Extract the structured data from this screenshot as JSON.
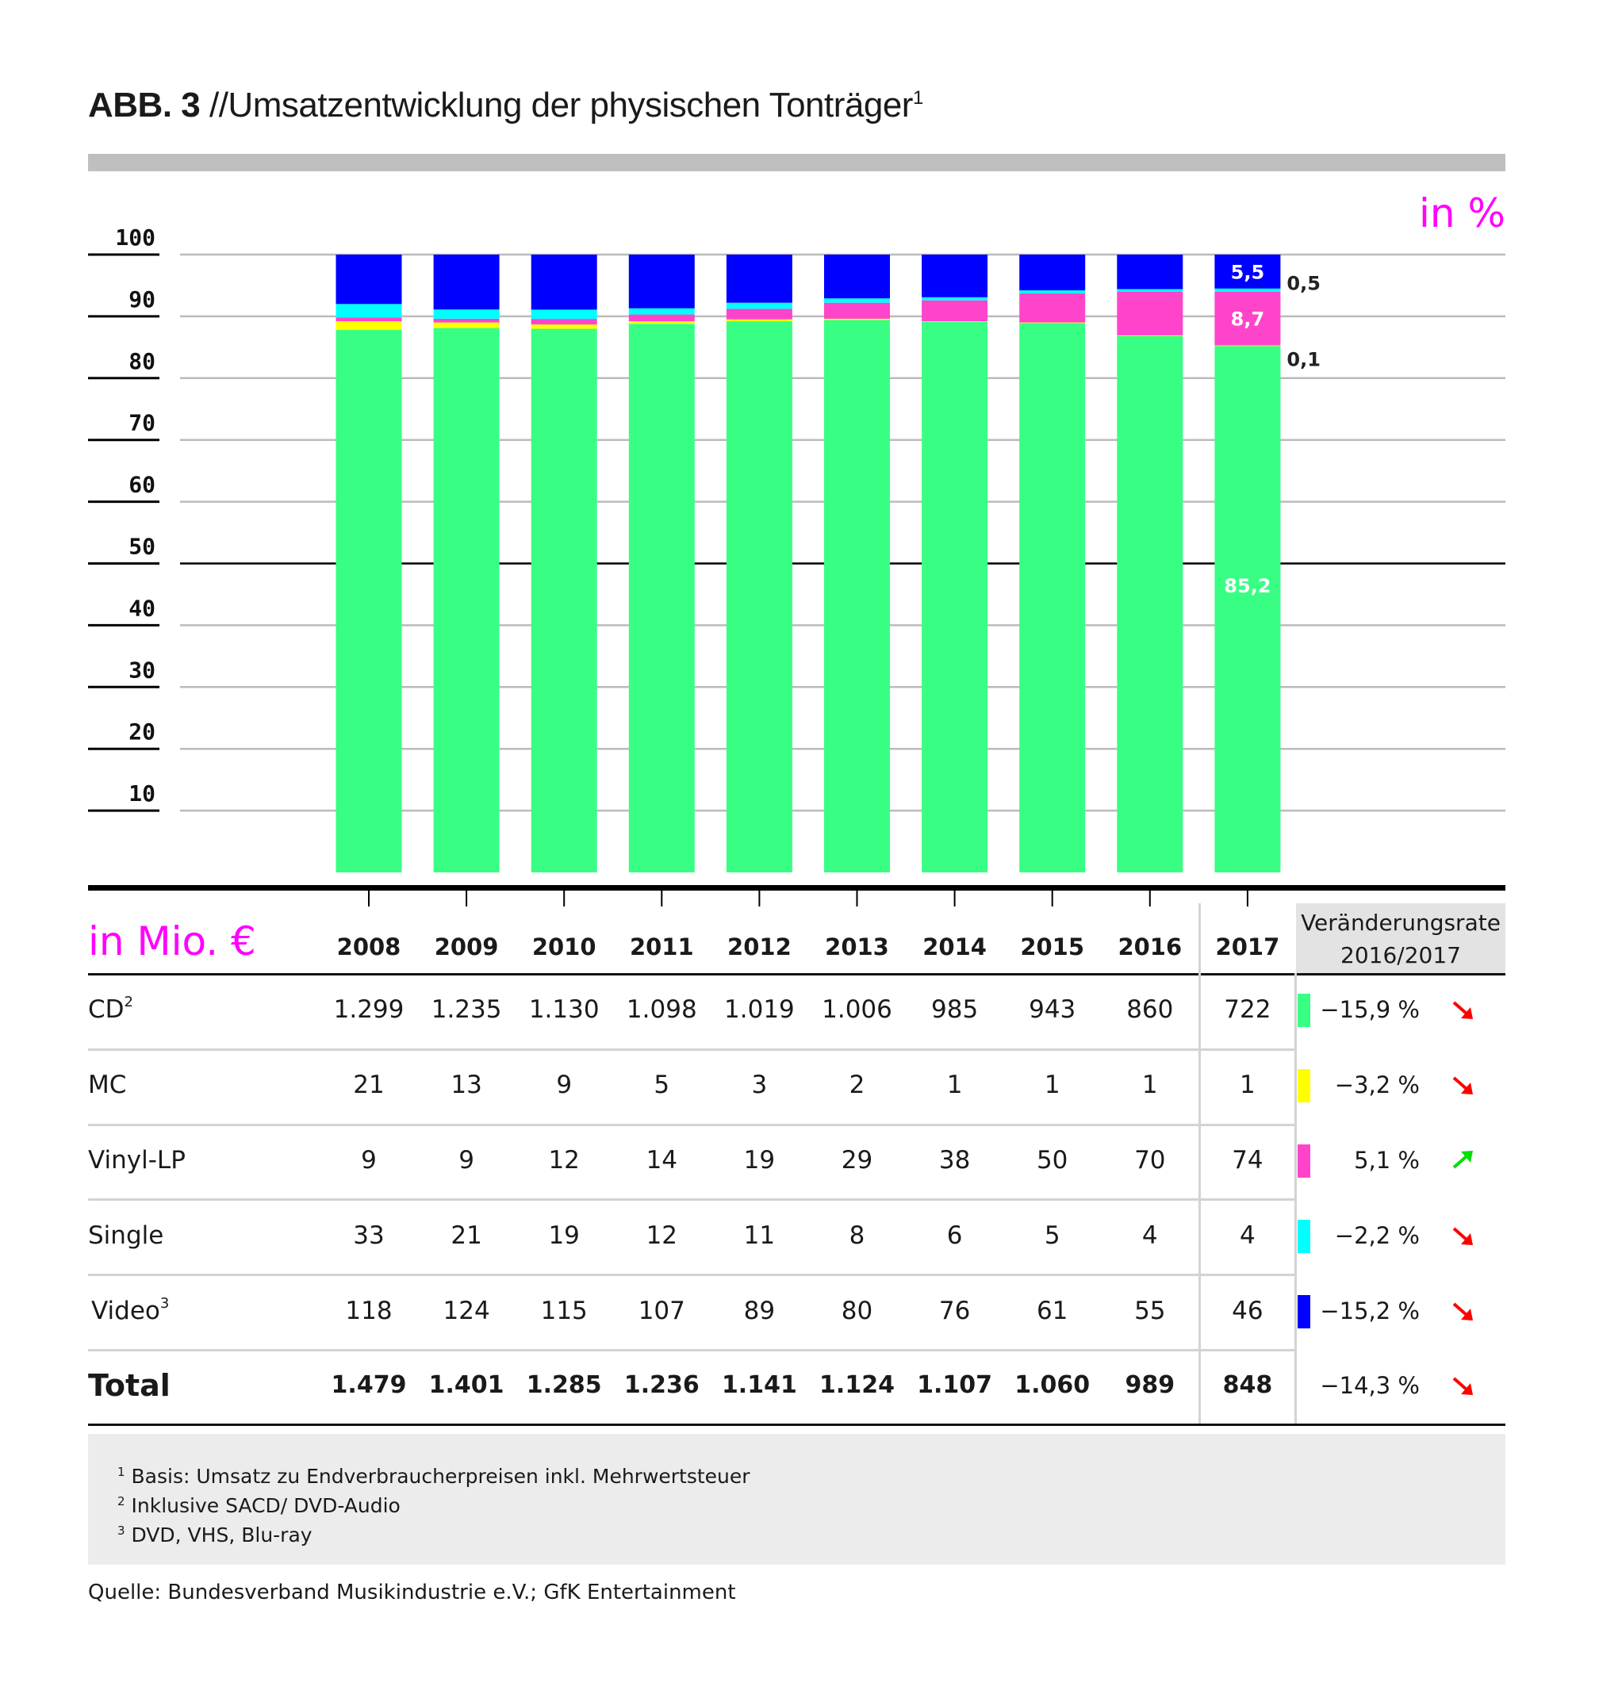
{
  "header": {
    "figure_label": "ABB. 3",
    "title": "//Umsatzentwicklung der physischen Tonträger",
    "title_footnote_mark": "1"
  },
  "chart_data": {
    "type": "bar",
    "stacked": true,
    "title": "ABB. 3 //Umsatzentwicklung der physischen Tonträger",
    "unit_label": "in %",
    "ylabel": "in %",
    "ylim": [
      0,
      100
    ],
    "yticks": [
      10,
      20,
      30,
      40,
      50,
      60,
      70,
      80,
      90,
      100
    ],
    "grid": true,
    "categories": [
      "2008",
      "2009",
      "2010",
      "2011",
      "2012",
      "2013",
      "2014",
      "2015",
      "2016",
      "2017"
    ],
    "series": [
      {
        "name": "CD",
        "color": "#38ff84",
        "values": [
          87.8,
          88.2,
          87.9,
          88.8,
          89.3,
          89.5,
          89.0,
          89.0,
          87.0,
          85.2
        ]
      },
      {
        "name": "MC",
        "color": "#ffff00",
        "values": [
          1.4,
          0.9,
          0.7,
          0.4,
          0.3,
          0.2,
          0.1,
          0.1,
          0.1,
          0.1
        ]
      },
      {
        "name": "Vinyl-LP",
        "color": "#ff44cc",
        "values": [
          0.6,
          0.6,
          0.9,
          1.1,
          1.7,
          2.6,
          3.4,
          4.7,
          7.1,
          8.7
        ]
      },
      {
        "name": "Single",
        "color": "#00ffff",
        "values": [
          2.2,
          1.5,
          1.5,
          1.0,
          1.0,
          0.7,
          0.5,
          0.5,
          0.4,
          0.5
        ]
      },
      {
        "name": "Video",
        "color": "#0000ff",
        "values": [
          8.0,
          8.9,
          8.9,
          8.7,
          7.8,
          7.1,
          6.9,
          5.8,
          5.6,
          5.5
        ]
      }
    ],
    "annotations_2017": {
      "video": "5,5",
      "single": "0,5",
      "vinyl": "8,7",
      "mc": "0,1",
      "cd": "85,2"
    }
  },
  "table": {
    "unit_label": "in Mio. €",
    "years": [
      "2008",
      "2009",
      "2010",
      "2011",
      "2012",
      "2013",
      "2014",
      "2015",
      "2016",
      "2017"
    ],
    "rate_header_line1": "Veränderungsrate",
    "rate_header_line2": "2016/2017",
    "rows": [
      {
        "label": "CD",
        "sup": "2",
        "color": "#38ff84",
        "values": [
          "1.299",
          "1.235",
          "1.130",
          "1.098",
          "1.019",
          "1.006",
          "985",
          "943",
          "860",
          "722"
        ],
        "rate": "−15,9 %",
        "trend": "down"
      },
      {
        "label": "MC",
        "sup": "",
        "color": "#ffff00",
        "values": [
          "21",
          "13",
          "9",
          "5",
          "3",
          "2",
          "1",
          "1",
          "1",
          "1"
        ],
        "rate": "−3,2 %",
        "trend": "down"
      },
      {
        "label": "Vinyl-LP",
        "sup": "",
        "color": "#ff44cc",
        "values": [
          "9",
          "9",
          "12",
          "14",
          "19",
          "29",
          "38",
          "50",
          "70",
          "74"
        ],
        "rate": "5,1 %",
        "trend": "up"
      },
      {
        "label": "Single",
        "sup": "",
        "color": "#00ffff",
        "values": [
          "33",
          "21",
          "19",
          "12",
          "11",
          "8",
          "6",
          "5",
          "4",
          "4"
        ],
        "rate": "−2,2 %",
        "trend": "down"
      },
      {
        "label": "Video",
        "sup": "3",
        "color": "#0000ff",
        "values": [
          "118",
          "124",
          "115",
          "107",
          "89",
          "80",
          "76",
          "61",
          "55",
          "46"
        ],
        "rate": "−15,2 %",
        "trend": "down"
      }
    ],
    "total": {
      "label": "Total",
      "values": [
        "1.479",
        "1.401",
        "1.285",
        "1.236",
        "1.141",
        "1.124",
        "1.107",
        "1.060",
        "989",
        "848"
      ],
      "rate": "−14,3 %",
      "trend": "down"
    }
  },
  "footnotes": [
    {
      "mark": "1",
      "text": "Basis: Umsatz zu Endverbraucherpreisen inkl. Mehrwertsteuer"
    },
    {
      "mark": "2",
      "text": "Inklusive SACD/ DVD-Audio"
    },
    {
      "mark": "3",
      "text": "DVD, VHS, Blu-ray"
    }
  ],
  "source": "Quelle: Bundesverband Musikindustrie e.V.; GfK Entertainment",
  "colors": {
    "accent": "#ff00ff",
    "down": "#ff0000",
    "up": "#00e000"
  }
}
